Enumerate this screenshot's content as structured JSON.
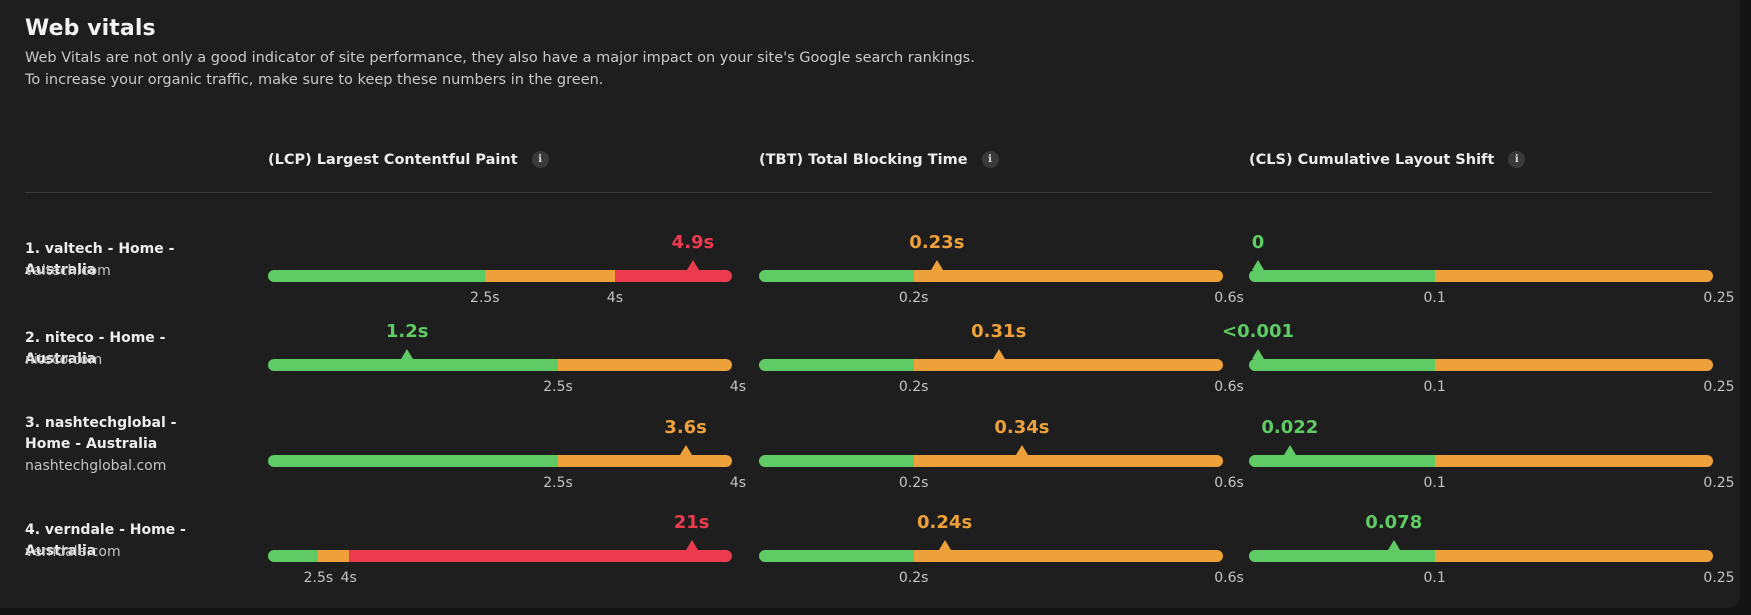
{
  "header": {
    "title": "Web vitals",
    "description_line1": "Web Vitals are not only a good indicator of site performance, they also have a major impact on your site's Google search rankings.",
    "description_line2": "To increase your organic traffic, make sure to keep these numbers in the green."
  },
  "columns": [
    {
      "label": "(LCP) Largest Contentful Paint",
      "info_icon": "info-icon"
    },
    {
      "label": "(TBT) Total Blocking Time",
      "info_icon": "info-icon"
    },
    {
      "label": "(CLS) Cumulative Layout Shift",
      "info_icon": "info-icon"
    }
  ],
  "info_glyph": "i",
  "colors": {
    "good": "#5fcb64",
    "needs_improvement": "#eea13a",
    "poor": "#ec3b4f"
  },
  "rows": [
    {
      "name": "1. valtech - Home - Australia",
      "domain": "valtech.com",
      "metrics": [
        {
          "value_label": "4.9s",
          "value": 4.9,
          "status": "poor",
          "segments": [
            {
              "color": "good",
              "to": 2.5
            },
            {
              "color": "needs_improvement",
              "to": 4
            },
            {
              "color": "poor",
              "to": 5.35
            }
          ],
          "scale_max": 5.35,
          "ticks": [
            {
              "label": "2.5s",
              "at": 2.5
            },
            {
              "label": "4s",
              "at": 4
            }
          ]
        },
        {
          "value_label": "0.23s",
          "value": 0.23,
          "status": "needs_improvement",
          "segments": [
            {
              "color": "good",
              "to": 0.2
            },
            {
              "color": "needs_improvement",
              "to": 0.6
            }
          ],
          "scale_max": 0.6,
          "ticks": [
            {
              "label": "0.2s",
              "at": 0.2
            },
            {
              "label": "0.6s",
              "at": 0.6
            }
          ]
        },
        {
          "value_label": "0",
          "value": 0,
          "status": "good",
          "segments": [
            {
              "color": "good",
              "to": 0.1
            },
            {
              "color": "needs_improvement",
              "to": 0.25
            }
          ],
          "scale_max": 0.25,
          "ticks": [
            {
              "label": "0.1",
              "at": 0.1
            },
            {
              "label": "0.25",
              "at": 0.25
            }
          ]
        }
      ]
    },
    {
      "name": "2. niteco - Home - Australia",
      "domain": "niteco.com",
      "metrics": [
        {
          "value_label": "1.2s",
          "value": 1.2,
          "status": "good",
          "segments": [
            {
              "color": "good",
              "to": 2.5
            },
            {
              "color": "needs_improvement",
              "to": 4
            }
          ],
          "scale_max": 4,
          "ticks": [
            {
              "label": "2.5s",
              "at": 2.5
            },
            {
              "label": "4s",
              "at": 4
            }
          ]
        },
        {
          "value_label": "0.31s",
          "value": 0.31,
          "status": "needs_improvement",
          "segments": [
            {
              "color": "good",
              "to": 0.2
            },
            {
              "color": "needs_improvement",
              "to": 0.6
            }
          ],
          "scale_max": 0.6,
          "ticks": [
            {
              "label": "0.2s",
              "at": 0.2
            },
            {
              "label": "0.6s",
              "at": 0.6
            }
          ]
        },
        {
          "value_label": "<0.001",
          "value": 0.001,
          "status": "good",
          "segments": [
            {
              "color": "good",
              "to": 0.1
            },
            {
              "color": "needs_improvement",
              "to": 0.25
            }
          ],
          "scale_max": 0.25,
          "ticks": [
            {
              "label": "0.1",
              "at": 0.1
            },
            {
              "label": "0.25",
              "at": 0.25
            }
          ]
        }
      ]
    },
    {
      "name": "3. nashtechglobal - Home - Australia",
      "domain": "nashtechglobal.com",
      "metrics": [
        {
          "value_label": "3.6s",
          "value": 3.6,
          "status": "needs_improvement",
          "segments": [
            {
              "color": "good",
              "to": 2.5
            },
            {
              "color": "needs_improvement",
              "to": 4
            }
          ],
          "scale_max": 4,
          "ticks": [
            {
              "label": "2.5s",
              "at": 2.5
            },
            {
              "label": "4s",
              "at": 4
            }
          ]
        },
        {
          "value_label": "0.34s",
          "value": 0.34,
          "status": "needs_improvement",
          "segments": [
            {
              "color": "good",
              "to": 0.2
            },
            {
              "color": "needs_improvement",
              "to": 0.6
            }
          ],
          "scale_max": 0.6,
          "ticks": [
            {
              "label": "0.2s",
              "at": 0.2
            },
            {
              "label": "0.6s",
              "at": 0.6
            }
          ]
        },
        {
          "value_label": "0.022",
          "value": 0.022,
          "status": "good",
          "segments": [
            {
              "color": "good",
              "to": 0.1
            },
            {
              "color": "needs_improvement",
              "to": 0.25
            }
          ],
          "scale_max": 0.25,
          "ticks": [
            {
              "label": "0.1",
              "at": 0.1
            },
            {
              "label": "0.25",
              "at": 0.25
            }
          ]
        }
      ]
    },
    {
      "name": "4. verndale - Home - Australia",
      "domain": "verndale.com",
      "metrics": [
        {
          "value_label": "21s",
          "value": 21,
          "status": "poor",
          "segments": [
            {
              "color": "good",
              "to": 2.5
            },
            {
              "color": "needs_improvement",
              "to": 4
            },
            {
              "color": "poor",
              "to": 23
            }
          ],
          "scale_max": 23,
          "ticks": [
            {
              "label": "2.5s",
              "at": 2.5
            },
            {
              "label": "4s",
              "at": 4
            }
          ]
        },
        {
          "value_label": "0.24s",
          "value": 0.24,
          "status": "needs_improvement",
          "segments": [
            {
              "color": "good",
              "to": 0.2
            },
            {
              "color": "needs_improvement",
              "to": 0.6
            }
          ],
          "scale_max": 0.6,
          "ticks": [
            {
              "label": "0.2s",
              "at": 0.2
            },
            {
              "label": "0.6s",
              "at": 0.6
            }
          ]
        },
        {
          "value_label": "0.078",
          "value": 0.078,
          "status": "good",
          "segments": [
            {
              "color": "good",
              "to": 0.1
            },
            {
              "color": "needs_improvement",
              "to": 0.25
            }
          ],
          "scale_max": 0.25,
          "ticks": [
            {
              "label": "0.1",
              "at": 0.1
            },
            {
              "label": "0.25",
              "at": 0.25
            }
          ]
        }
      ]
    }
  ]
}
